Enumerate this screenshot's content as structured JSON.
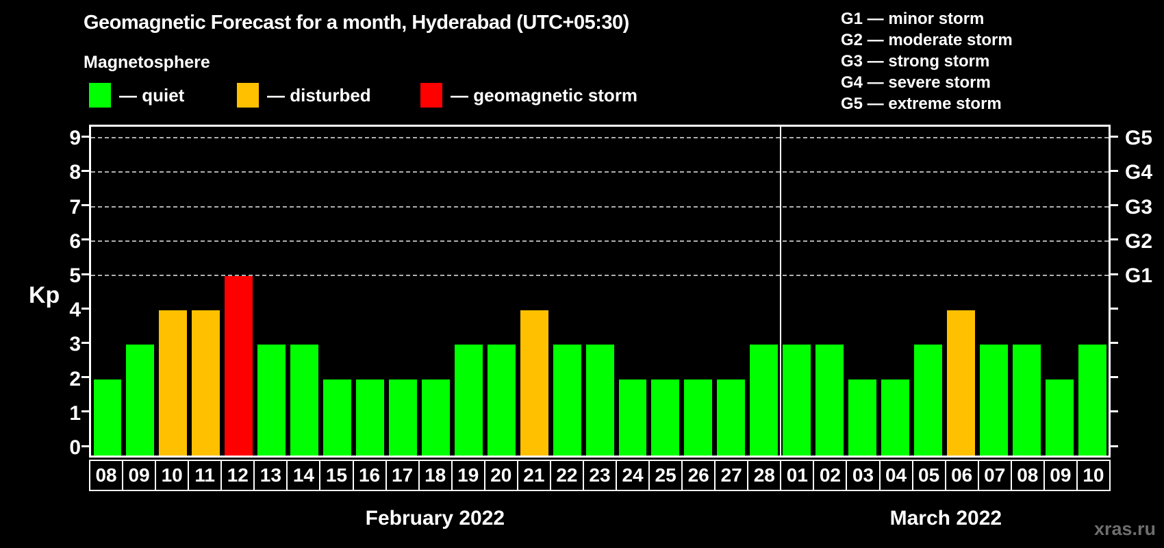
{
  "title": "Geomagnetic Forecast for a month, Hyderabad (UTC+05:30)",
  "subtitle": "Magnetosphere",
  "legend": {
    "quiet_label": "— quiet",
    "disturbed_label": "— disturbed",
    "storm_label": "— geomagnetic storm"
  },
  "g_legend": [
    {
      "text": "G1 — minor storm"
    },
    {
      "text": "G2 — moderate storm"
    },
    {
      "text": "G3 — strong storm"
    },
    {
      "text": "G4 — severe storm"
    },
    {
      "text": "G5 — extreme storm"
    }
  ],
  "axis": {
    "kp_label": "Kp",
    "kp_ticks": [
      0,
      1,
      2,
      3,
      4,
      5,
      6,
      7,
      8,
      9
    ],
    "g_ticks": [
      {
        "kp": 5,
        "label": "G1"
      },
      {
        "kp": 6,
        "label": "G2"
      },
      {
        "kp": 7,
        "label": "G3"
      },
      {
        "kp": 8,
        "label": "G4"
      },
      {
        "kp": 9,
        "label": "G5"
      }
    ]
  },
  "colors": {
    "quiet": "#00ff00",
    "disturbed": "#ffc000",
    "storm": "#ff0000",
    "background": "#000000",
    "grid": "#b0b0b0",
    "axis": "#ffffff",
    "watermark": "#6e6e6e"
  },
  "watermark": "xras.ru",
  "chart_data": {
    "type": "bar",
    "title": "Geomagnetic Forecast for a month, Hyderabad (UTC+05:30)",
    "xlabel": "",
    "ylabel": "Kp",
    "ylim": [
      0,
      9
    ],
    "grid": "dashed horizontal at Kp 5-9",
    "gridlines_at": [
      5,
      6,
      7,
      8,
      9
    ],
    "legend_position": "top",
    "months": [
      {
        "label": "February 2022",
        "days": 21
      },
      {
        "label": "March 2022",
        "days": 10
      }
    ],
    "categories": [
      "08",
      "09",
      "10",
      "11",
      "12",
      "13",
      "14",
      "15",
      "16",
      "17",
      "18",
      "19",
      "20",
      "21",
      "22",
      "23",
      "24",
      "25",
      "26",
      "27",
      "28",
      "01",
      "02",
      "03",
      "04",
      "05",
      "06",
      "07",
      "08",
      "09",
      "10"
    ],
    "values": [
      2,
      3,
      4,
      4,
      5,
      3,
      3,
      2,
      2,
      2,
      2,
      3,
      3,
      4,
      3,
      3,
      2,
      2,
      2,
      2,
      3,
      3,
      3,
      2,
      2,
      3,
      4,
      3,
      3,
      2,
      3
    ],
    "statuses": [
      "quiet",
      "quiet",
      "disturbed",
      "disturbed",
      "storm",
      "quiet",
      "quiet",
      "quiet",
      "quiet",
      "quiet",
      "quiet",
      "quiet",
      "quiet",
      "disturbed",
      "quiet",
      "quiet",
      "quiet",
      "quiet",
      "quiet",
      "quiet",
      "quiet",
      "quiet",
      "quiet",
      "quiet",
      "quiet",
      "quiet",
      "disturbed",
      "quiet",
      "quiet",
      "quiet",
      "quiet"
    ]
  }
}
